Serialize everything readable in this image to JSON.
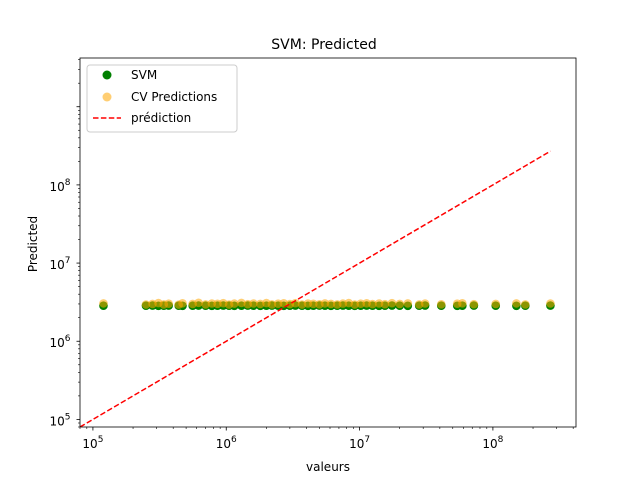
{
  "chart_data": {
    "type": "scatter",
    "title": "SVM: Predicted",
    "xlabel": "valeurs",
    "ylabel": "Predicted",
    "xscale": "log",
    "yscale": "log",
    "xlim": [
      80000,
      420000000
    ],
    "ylim": [
      80000,
      4200000000
    ],
    "grid": false,
    "legend_position": "top-left",
    "x_ticks": [
      {
        "value": 100000,
        "base": "10",
        "exp": "5"
      },
      {
        "value": 1000000,
        "base": "10",
        "exp": "6"
      },
      {
        "value": 10000000,
        "base": "10",
        "exp": "7"
      },
      {
        "value": 100000000,
        "base": "10",
        "exp": "8"
      }
    ],
    "y_ticks": [
      {
        "value": 100000,
        "base": "10",
        "exp": "5"
      },
      {
        "value": 1000000,
        "base": "10",
        "exp": "6"
      },
      {
        "value": 10000000,
        "base": "10",
        "exp": "7"
      },
      {
        "value": 100000000,
        "base": "10",
        "exp": "8"
      }
    ],
    "series": [
      {
        "name": "SVM",
        "kind": "scatter",
        "color": "#008000",
        "x": [
          120000,
          250000,
          280000,
          310000,
          340000,
          370000,
          440000,
          470000,
          560000,
          620000,
          700000,
          780000,
          860000,
          950000,
          1050000,
          1150000,
          1300000,
          1450000,
          1600000,
          1800000,
          2000000,
          2200000,
          2450000,
          2700000,
          3000000,
          3300000,
          3700000,
          4100000,
          4500000,
          5000000,
          5500000,
          6100000,
          6800000,
          7500000,
          8300000,
          9200000,
          10200000,
          11300000,
          12500000,
          14000000,
          15500000,
          17500000,
          20000000,
          23000000,
          28000000,
          31000000,
          41000000,
          54000000,
          59000000,
          72000000,
          105000000,
          150000000,
          175000000,
          270000000
        ],
        "y": [
          2850000,
          2850000,
          2860000,
          2840000,
          2850000,
          2860000,
          2850000,
          2840000,
          2850000,
          2860000,
          2850000,
          2840000,
          2850000,
          2860000,
          2850000,
          2840000,
          2850000,
          2860000,
          2850000,
          2840000,
          2850000,
          2860000,
          2850000,
          2840000,
          2850000,
          2860000,
          2850000,
          2840000,
          2850000,
          2860000,
          2850000,
          2840000,
          2850000,
          2860000,
          2850000,
          2840000,
          2850000,
          2860000,
          2850000,
          2840000,
          2850000,
          2860000,
          2850000,
          2840000,
          2850000,
          2860000,
          2850000,
          2840000,
          2850000,
          2860000,
          2850000,
          2840000,
          2850000,
          2860000
        ]
      },
      {
        "name": "CV Predictions",
        "kind": "scatter",
        "color": "#ffa500",
        "alpha": 0.55,
        "x": [
          120000,
          250000,
          280000,
          310000,
          340000,
          370000,
          440000,
          470000,
          560000,
          620000,
          700000,
          780000,
          860000,
          950000,
          1050000,
          1150000,
          1300000,
          1450000,
          1600000,
          1800000,
          2000000,
          2200000,
          2450000,
          2700000,
          3000000,
          3300000,
          3700000,
          4100000,
          4500000,
          5000000,
          5500000,
          6100000,
          6800000,
          7500000,
          8300000,
          9200000,
          10200000,
          11300000,
          12500000,
          14000000,
          15500000,
          17500000,
          20000000,
          23000000,
          28000000,
          31000000,
          41000000,
          54000000,
          59000000,
          72000000,
          105000000,
          150000000,
          175000000,
          270000000
        ],
        "y": [
          3050000,
          2950000,
          3000000,
          3080000,
          2960000,
          3020000,
          2940000,
          3060000,
          3000000,
          3100000,
          2960000,
          3040000,
          3010000,
          3070000,
          2950000,
          3030000,
          3090000,
          2980000,
          3040000,
          3000000,
          3080000,
          2960000,
          3020000,
          3060000,
          2990000,
          3070000,
          2950000,
          3040000,
          3010000,
          2970000,
          3050000,
          3000000,
          2960000,
          3030000,
          3080000,
          2950000,
          3020000,
          3060000,
          2990000,
          3040000,
          2980000,
          3070000,
          3000000,
          3050000,
          2960000,
          3040000,
          2970000,
          3020000,
          3060000,
          2980000,
          3000000,
          3050000,
          2960000,
          3040000
        ]
      },
      {
        "name": "prédiction",
        "kind": "line",
        "color": "#ff0000",
        "dashed": true,
        "x": [
          80000,
          270000000
        ],
        "y": [
          80000,
          270000000
        ]
      }
    ]
  }
}
